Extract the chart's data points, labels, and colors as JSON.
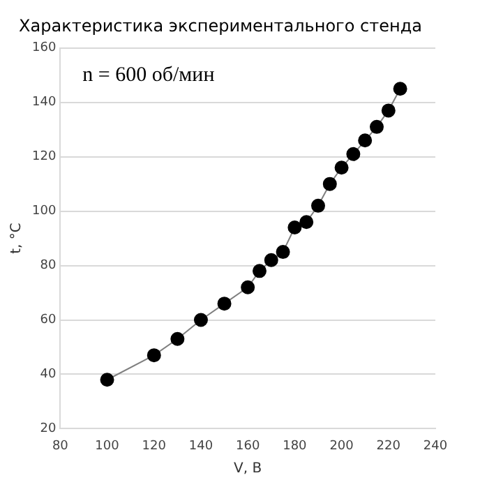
{
  "chart_data": {
    "type": "line",
    "title": "Характеристика экспериментального стенда",
    "xlabel": "V, В",
    "ylabel": "t, °C",
    "annotations": [
      "n = 600 об/мин"
    ],
    "x": [
      100,
      120,
      130,
      140,
      150,
      160,
      165,
      170,
      175,
      180,
      185,
      190,
      195,
      200,
      205,
      210,
      215,
      220,
      225
    ],
    "series": [
      {
        "color": "#000000",
        "values": [
          38,
          47,
          53,
          60,
          66,
          72,
          78,
          82,
          85,
          94,
          96,
          102,
          110,
          116,
          121,
          126,
          131,
          137,
          145
        ]
      }
    ],
    "xlim": [
      80,
      240
    ],
    "xticks": [
      80,
      100,
      120,
      140,
      160,
      180,
      200,
      220,
      240
    ],
    "ylim": [
      20,
      160
    ],
    "yticks": [
      20,
      40,
      60,
      80,
      100,
      120,
      140,
      160
    ],
    "grid": "y",
    "marker": "circle",
    "line_style": "solid",
    "legend": false
  }
}
